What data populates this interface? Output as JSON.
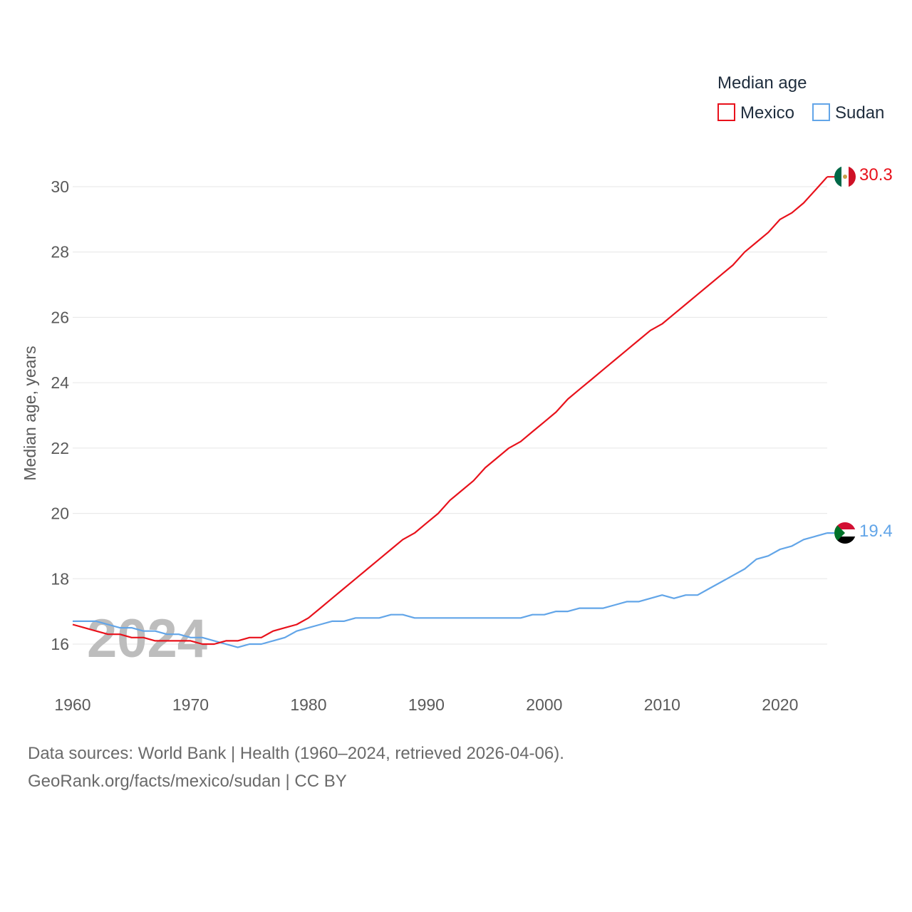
{
  "chart_data": {
    "type": "line",
    "title": "",
    "xlabel": "",
    "ylabel": "Median age, years",
    "xlim": [
      1960,
      2024
    ],
    "ylim": [
      15,
      31.2
    ],
    "x_ticks": [
      1960,
      1970,
      1980,
      1990,
      2000,
      2010,
      2020
    ],
    "y_ticks": [
      16,
      18,
      20,
      22,
      24,
      26,
      28,
      30
    ],
    "grid": true,
    "legend_title": "Median age",
    "legend_position": "top-right",
    "watermark_year": "2024",
    "x": [
      1960,
      1961,
      1962,
      1963,
      1964,
      1965,
      1966,
      1967,
      1968,
      1969,
      1970,
      1971,
      1972,
      1973,
      1974,
      1975,
      1976,
      1977,
      1978,
      1979,
      1980,
      1981,
      1982,
      1983,
      1984,
      1985,
      1986,
      1987,
      1988,
      1989,
      1990,
      1991,
      1992,
      1993,
      1994,
      1995,
      1996,
      1997,
      1998,
      1999,
      2000,
      2001,
      2002,
      2003,
      2004,
      2005,
      2006,
      2007,
      2008,
      2009,
      2010,
      2011,
      2012,
      2013,
      2014,
      2015,
      2016,
      2017,
      2018,
      2019,
      2020,
      2021,
      2022,
      2023,
      2024
    ],
    "series": [
      {
        "name": "Mexico",
        "color": "#e8111b",
        "icon": "mexico-flag-icon",
        "end_label": "30.3",
        "values": [
          16.6,
          16.5,
          16.4,
          16.3,
          16.3,
          16.2,
          16.2,
          16.1,
          16.1,
          16.1,
          16.1,
          16.0,
          16.0,
          16.1,
          16.1,
          16.2,
          16.2,
          16.4,
          16.5,
          16.6,
          16.8,
          17.1,
          17.4,
          17.7,
          18.0,
          18.3,
          18.6,
          18.9,
          19.2,
          19.4,
          19.7,
          20.0,
          20.4,
          20.7,
          21.0,
          21.4,
          21.7,
          22.0,
          22.2,
          22.5,
          22.8,
          23.1,
          23.5,
          23.8,
          24.1,
          24.4,
          24.7,
          25.0,
          25.3,
          25.6,
          25.8,
          26.1,
          26.4,
          26.7,
          27.0,
          27.3,
          27.6,
          28.0,
          28.3,
          28.6,
          29.0,
          29.2,
          29.5,
          29.9,
          30.3
        ]
      },
      {
        "name": "Sudan",
        "color": "#62a5e8",
        "icon": "sudan-flag-icon",
        "end_label": "19.4",
        "values": [
          16.7,
          16.7,
          16.7,
          16.6,
          16.5,
          16.5,
          16.4,
          16.4,
          16.3,
          16.3,
          16.2,
          16.2,
          16.1,
          16.0,
          15.9,
          16.0,
          16.0,
          16.1,
          16.2,
          16.4,
          16.5,
          16.6,
          16.7,
          16.7,
          16.8,
          16.8,
          16.8,
          16.9,
          16.9,
          16.8,
          16.8,
          16.8,
          16.8,
          16.8,
          16.8,
          16.8,
          16.8,
          16.8,
          16.8,
          16.9,
          16.9,
          17.0,
          17.0,
          17.1,
          17.1,
          17.1,
          17.2,
          17.3,
          17.3,
          17.4,
          17.5,
          17.4,
          17.5,
          17.5,
          17.7,
          17.9,
          18.1,
          18.3,
          18.6,
          18.7,
          18.9,
          19.0,
          19.2,
          19.3,
          19.4
        ]
      }
    ]
  },
  "footer": {
    "source_line": "Data sources: World Bank | Health (1960–2024, retrieved 2026-04-06).",
    "credit_line": "GeoRank.org/facts/mexico/sudan | CC BY"
  }
}
